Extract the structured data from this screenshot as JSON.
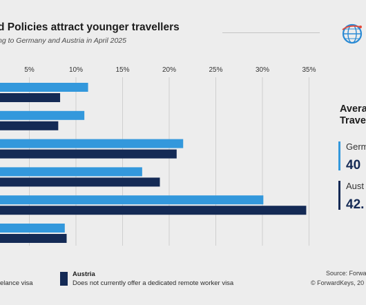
{
  "header": {
    "title": "d Policies attract younger travellers",
    "subtitle": "ng to Germany and Austria in April 2025"
  },
  "colors": {
    "germany": "#3398dc",
    "austria": "#142a55",
    "logo_blue": "#2a8ad4",
    "logo_red": "#e44a3a"
  },
  "side_panel": {
    "title_line1": "Avera",
    "title_line2": "Trave",
    "stats": [
      {
        "country": "Germ",
        "value": "40"
      },
      {
        "country": "Aust",
        "value": "42."
      }
    ]
  },
  "legend": {
    "germany_desc": "elance visa",
    "austria_name": "Austria",
    "austria_desc": "Does not currently offer a dedicated remote worker visa"
  },
  "footer": {
    "source": "Source: Forwa",
    "copyright": "© ForwardKeys, 20"
  },
  "chart_data": {
    "type": "bar",
    "orientation": "horizontal",
    "x_ticks": [
      "5%",
      "10%",
      "15%",
      "20%",
      "25%",
      "30%",
      "35%"
    ],
    "xlim": [
      0,
      35
    ],
    "grid": true,
    "categories": [
      "",
      "",
      "",
      "",
      "",
      ""
    ],
    "series": [
      {
        "key": "germany",
        "values": [
          11.3,
          10.9,
          21.5,
          17.1,
          30.1,
          8.8
        ]
      },
      {
        "key": "austria",
        "values": [
          8.3,
          8.1,
          20.8,
          19.0,
          34.7,
          9.0
        ]
      }
    ]
  }
}
